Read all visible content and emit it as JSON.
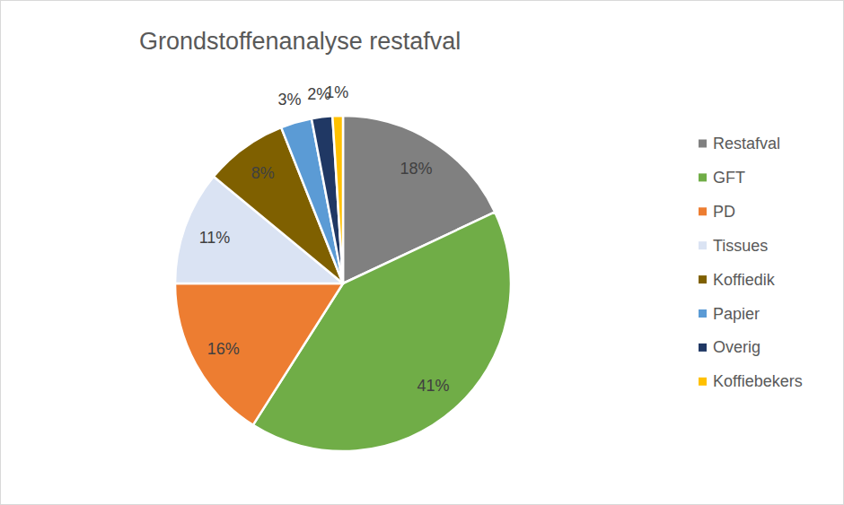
{
  "chart_data": {
    "type": "pie",
    "title": "Grondstoffenanalyse restafval",
    "categories": [
      "Restafval",
      "GFT",
      "PD",
      "Tissues",
      "Koffiedik",
      "Papier",
      "Overig",
      "Koffiebekers"
    ],
    "values": [
      18,
      41,
      16,
      11,
      8,
      3,
      2,
      1
    ],
    "value_labels": [
      "18%",
      "41%",
      "16%",
      "11%",
      "8%",
      "3%",
      "2%",
      "1%"
    ],
    "colors": [
      "#808080",
      "#70ad47",
      "#ed7d31",
      "#dae3f3",
      "#7f6000",
      "#5b9bd5",
      "#203864",
      "#ffc000"
    ],
    "data_labels": true,
    "legend": "right"
  }
}
